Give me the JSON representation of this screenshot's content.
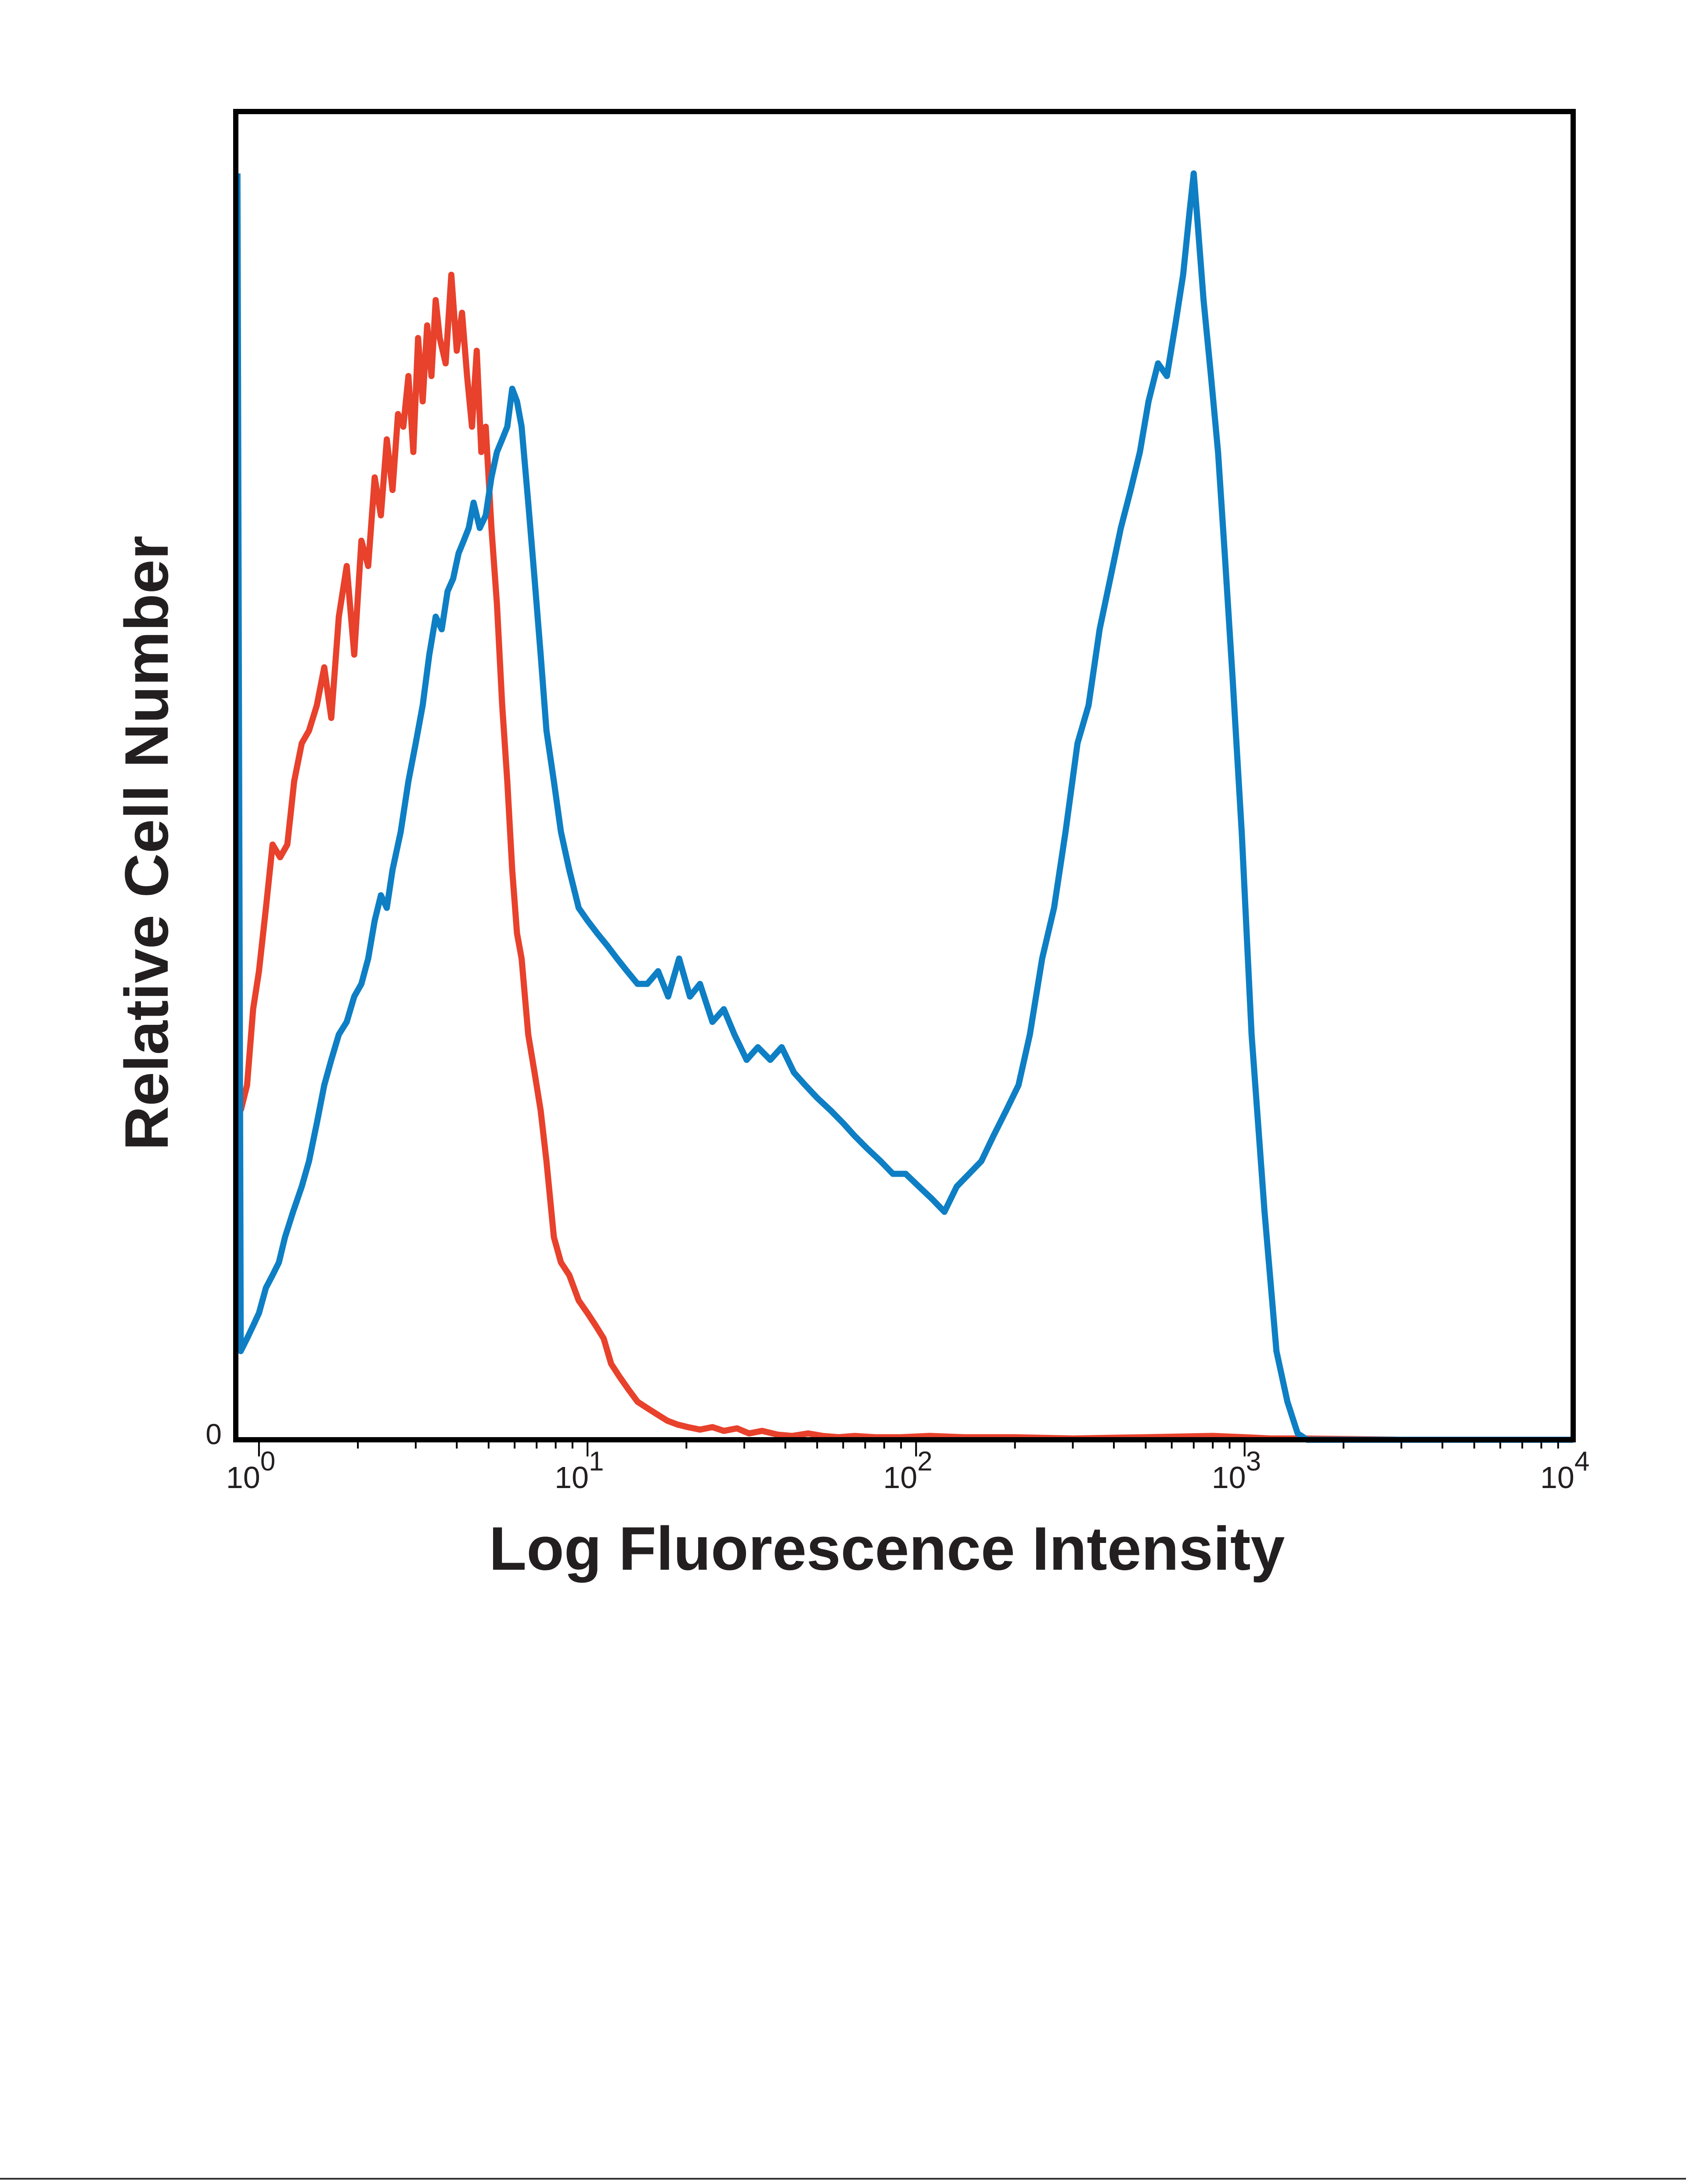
{
  "chart_data": {
    "type": "line",
    "title": "",
    "xlabel": "Log Fluorescence Intensity",
    "ylabel": "Relative Cell Number",
    "x_scale": "log",
    "xlim": [
      0.85,
      10000
    ],
    "ylim": [
      0,
      100
    ],
    "x_ticks": [
      {
        "value": 1,
        "base": "10",
        "exp": "0"
      },
      {
        "value": 10,
        "base": "10",
        "exp": "1"
      },
      {
        "value": 100,
        "base": "10",
        "exp": "2"
      },
      {
        "value": 1000,
        "base": "10",
        "exp": "3"
      },
      {
        "value": 10000,
        "base": "10",
        "exp": "4"
      }
    ],
    "y_ticks": [
      {
        "value": 0,
        "label": "0"
      }
    ],
    "grid": false,
    "legend": "none",
    "colors": {
      "red_series": "#e8412c",
      "blue_series": "#0e7fc4",
      "axes": "#000000"
    },
    "series": [
      {
        "color": "#e8412c",
        "x": [
          0.88,
          0.92,
          0.96,
          1.0,
          1.05,
          1.1,
          1.16,
          1.22,
          1.28,
          1.35,
          1.42,
          1.5,
          1.58,
          1.66,
          1.75,
          1.85,
          1.95,
          2.05,
          2.15,
          2.25,
          2.35,
          2.45,
          2.55,
          2.65,
          2.75,
          2.85,
          2.95,
          3.05,
          3.15,
          3.25,
          3.35,
          3.45,
          3.55,
          3.7,
          3.85,
          4.0,
          4.15,
          4.3,
          4.45,
          4.6,
          4.75,
          4.9,
          5.1,
          5.3,
          5.5,
          5.7,
          5.9,
          6.1,
          6.3,
          6.6,
          6.9,
          7.2,
          7.5,
          7.9,
          8.3,
          8.8,
          9.4,
          10.0,
          10.6,
          11.2,
          11.8,
          12.5,
          13.3,
          14.2,
          15.2,
          16.3,
          17.5,
          18.8,
          20.2,
          22,
          24,
          26,
          28.5,
          31,
          34,
          38,
          42,
          47,
          52,
          58,
          65,
          75,
          90,
          110,
          140,
          200,
          300,
          500,
          800,
          1000,
          1200,
          1500,
          3000,
          10000
        ],
        "y": [
          26,
          28,
          34,
          37,
          42,
          47,
          46,
          47,
          52,
          55,
          56,
          58,
          61,
          57,
          65,
          69,
          62,
          71,
          69,
          76,
          73,
          79,
          75,
          81,
          80,
          84,
          78,
          87,
          82,
          88,
          84,
          90,
          87,
          85,
          92,
          86,
          89,
          84,
          80,
          86,
          78,
          80,
          72,
          66,
          58,
          52,
          45,
          40,
          38,
          32,
          29,
          26,
          22,
          16,
          14,
          13,
          11,
          10,
          9,
          8,
          6,
          5,
          4,
          3,
          2.5,
          2,
          1.5,
          1.2,
          1,
          0.8,
          1,
          0.7,
          0.9,
          0.5,
          0.7,
          0.4,
          0.3,
          0.5,
          0.3,
          0.2,
          0.3,
          0.2,
          0.2,
          0.3,
          0.2,
          0.2,
          0.1,
          0.2,
          0.3,
          0.2,
          0.1,
          0.1,
          0,
          0
        ]
      },
      {
        "color": "#0e7fc4",
        "x": [
          0.86,
          0.88,
          0.92,
          0.96,
          1.0,
          1.05,
          1.1,
          1.15,
          1.2,
          1.27,
          1.35,
          1.42,
          1.5,
          1.58,
          1.66,
          1.75,
          1.85,
          1.95,
          2.05,
          2.15,
          2.25,
          2.35,
          2.45,
          2.55,
          2.7,
          2.85,
          3.0,
          3.15,
          3.3,
          3.45,
          3.6,
          3.75,
          3.9,
          4.05,
          4.2,
          4.35,
          4.5,
          4.7,
          4.9,
          5.1,
          5.3,
          5.5,
          5.7,
          5.9,
          6.1,
          6.3,
          6.6,
          6.9,
          7.2,
          7.5,
          7.9,
          8.3,
          8.8,
          9.4,
          10.0,
          10.7,
          11.5,
          12.3,
          13.2,
          14.2,
          15.2,
          16.4,
          17.6,
          19,
          20.5,
          22,
          24,
          26,
          28,
          30.5,
          33,
          36,
          39,
          42.5,
          46,
          50,
          55,
          60,
          65,
          71,
          78,
          85,
          93,
          102,
          112,
          122,
          133,
          145,
          158,
          172,
          188,
          205,
          222,
          242,
          263,
          285,
          310,
          335,
          362,
          390,
          420,
          450,
          480,
          510,
          545,
          580,
          615,
          650,
          680,
          700,
          720,
          750,
          790,
          830,
          870,
          920,
          980,
          1050,
          1150,
          1250,
          1350,
          1450,
          1550,
          2000,
          5000,
          10000
        ],
        "y": [
          100,
          7,
          8,
          9,
          10,
          12,
          13,
          14,
          16,
          18,
          20,
          22,
          25,
          28,
          30,
          32,
          33,
          35,
          36,
          38,
          41,
          43,
          42,
          45,
          48,
          52,
          55,
          58,
          62,
          65,
          64,
          67,
          68,
          70,
          71,
          72,
          74,
          72,
          73,
          76,
          78,
          79,
          80,
          83,
          82,
          80,
          74,
          68,
          62,
          56,
          52,
          48,
          45,
          42,
          41,
          40,
          39,
          38,
          37,
          36,
          36,
          37,
          35,
          38,
          35,
          36,
          33,
          34,
          32,
          30,
          31,
          30,
          31,
          29,
          28,
          27,
          26,
          25,
          24,
          23,
          22,
          21,
          21,
          20,
          19,
          18,
          20,
          21,
          22,
          24,
          26,
          28,
          32,
          38,
          42,
          48,
          55,
          58,
          64,
          68,
          72,
          75,
          78,
          82,
          85,
          84,
          88,
          92,
          97,
          100,
          96,
          90,
          84,
          78,
          70,
          60,
          48,
          32,
          18,
          7,
          3,
          0.5,
          0,
          0,
          0,
          0
        ]
      }
    ]
  }
}
